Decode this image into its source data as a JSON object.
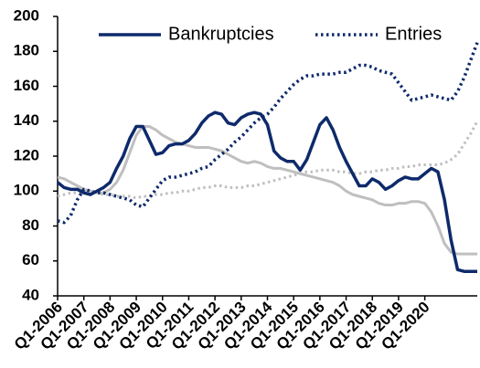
{
  "chart_data": {
    "type": "line",
    "categories": [
      "Q1-2006",
      null,
      null,
      null,
      "Q1-2007",
      null,
      null,
      null,
      "Q1-2008",
      null,
      null,
      null,
      "Q1-2009",
      null,
      null,
      null,
      "Q1-2010",
      null,
      null,
      null,
      "Q1-2011",
      null,
      null,
      null,
      "Q1-2012",
      null,
      null,
      null,
      "Q1-2013",
      null,
      null,
      null,
      "Q1-2014",
      null,
      null,
      null,
      "Q1-2015",
      null,
      null,
      null,
      "Q1-2016",
      null,
      null,
      null,
      "Q1-2017",
      null,
      null,
      null,
      "Q1-2018",
      null,
      null,
      null,
      "Q1-2019",
      null,
      null,
      null,
      "Q1-2020",
      null,
      null,
      null,
      null,
      null,
      null,
      null,
      null
    ],
    "series": [
      {
        "color": "#bfbfbf",
        "style": "solid",
        "values": [
          108,
          107,
          105,
          103,
          101,
          100,
          99,
          99,
          101,
          105,
          112,
          122,
          132,
          137,
          137,
          135,
          132,
          130,
          128,
          127,
          126,
          125,
          125,
          125,
          124,
          123,
          121,
          119,
          117,
          116,
          117,
          116,
          114,
          113,
          113,
          112,
          111,
          110,
          109,
          108,
          107,
          106,
          105,
          103,
          100,
          98,
          97,
          96,
          95,
          93,
          92,
          92,
          93,
          93,
          94,
          94,
          93,
          88,
          80,
          70,
          65,
          64,
          64,
          64,
          64
        ]
      },
      {
        "color": "#bfbfbf",
        "style": "dotted",
        "values": [
          97,
          98,
          99,
          99,
          99,
          99,
          99,
          98,
          98,
          97,
          97,
          97,
          96,
          97,
          97,
          98,
          98,
          99,
          99,
          100,
          100,
          101,
          102,
          102,
          103,
          103,
          102,
          102,
          102,
          103,
          103,
          104,
          105,
          106,
          107,
          108,
          109,
          110,
          111,
          111,
          112,
          112,
          112,
          111,
          111,
          110,
          110,
          111,
          111,
          112,
          112,
          113,
          113,
          114,
          114,
          115,
          115,
          115,
          115,
          116,
          118,
          121,
          127,
          133,
          140
        ]
      },
      {
        "name": "Bankruptcies",
        "color": "#0e2a6b",
        "style": "solid",
        "values": [
          105,
          102,
          101,
          101,
          99,
          98,
          100,
          102,
          105,
          113,
          120,
          130,
          137,
          137,
          129,
          121,
          122,
          126,
          127,
          127,
          129,
          133,
          139,
          143,
          145,
          144,
          139,
          138,
          142,
          144,
          145,
          144,
          138,
          123,
          119,
          117,
          117,
          112,
          118,
          128,
          138,
          142,
          135,
          125,
          117,
          110,
          103,
          103,
          107,
          105,
          101,
          103,
          106,
          108,
          107,
          107,
          110,
          113,
          111,
          95,
          72,
          55,
          54,
          54,
          54
        ]
      },
      {
        "name": "Entries",
        "color": "#0e2a6b",
        "style": "dotted",
        "values": [
          83,
          82,
          86,
          95,
          101,
          100,
          99,
          99,
          98,
          97,
          96,
          95,
          92,
          91,
          96,
          101,
          106,
          108,
          108,
          109,
          110,
          111,
          113,
          114,
          118,
          121,
          124,
          128,
          131,
          135,
          139,
          142,
          144,
          148,
          153,
          157,
          161,
          164,
          166,
          166,
          167,
          167,
          167,
          168,
          168,
          170,
          172,
          172,
          171,
          169,
          168,
          167,
          162,
          157,
          152,
          153,
          154,
          155,
          154,
          153,
          152,
          157,
          165,
          175,
          185
        ]
      }
    ],
    "ylim": [
      40,
      200
    ],
    "yticks": [
      40,
      60,
      80,
      100,
      120,
      140,
      160,
      180,
      200
    ],
    "grid": false,
    "legend": "top"
  }
}
